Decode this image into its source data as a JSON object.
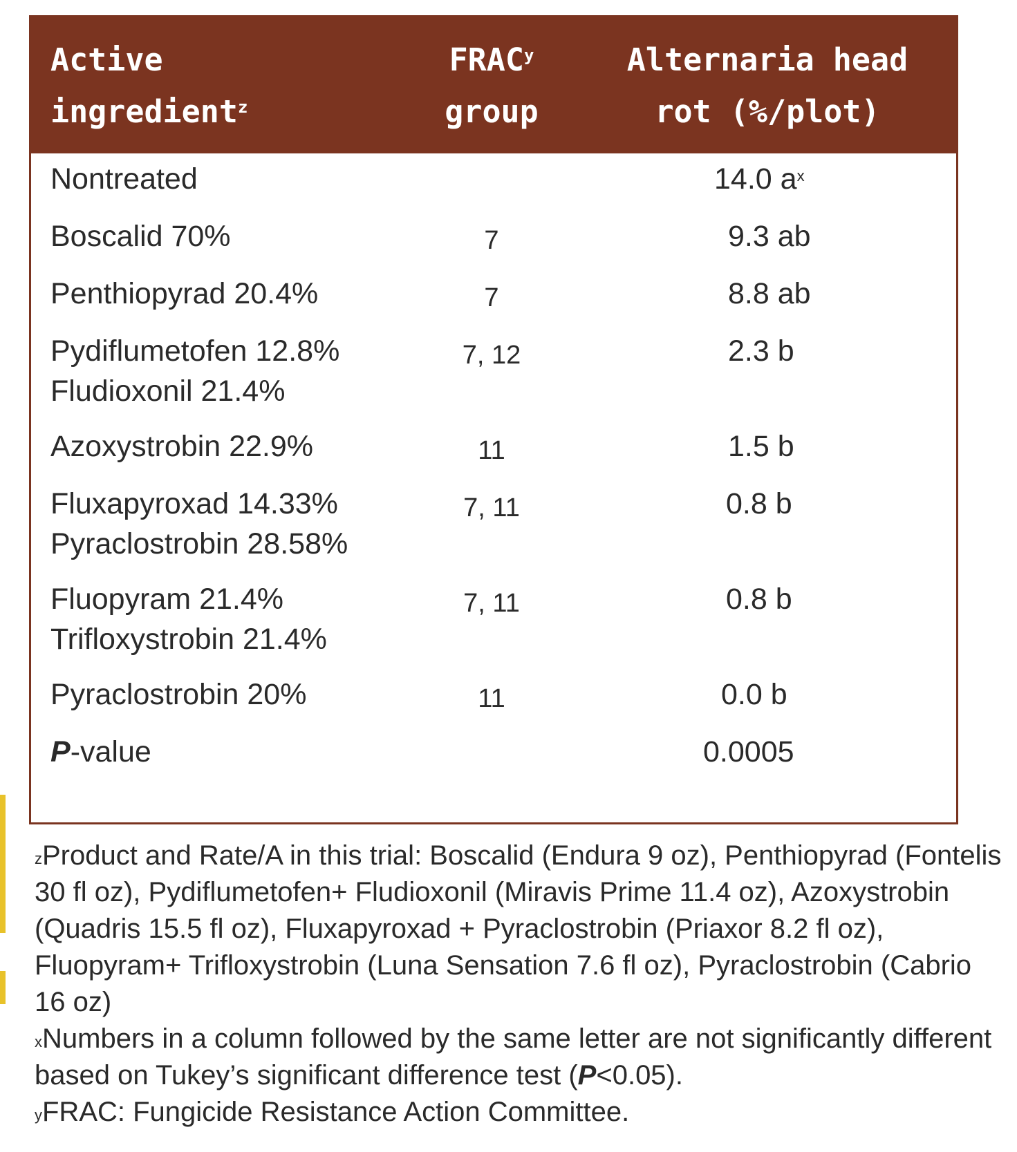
{
  "header": {
    "col1_line1": "Active",
    "col1_line2": "ingredient",
    "col1_sup": "z",
    "col2_line1": "FRAC",
    "col2_sup": "y",
    "col2_line2": "group",
    "col3_line1": "Alternaria head",
    "col3_line2": "rot (%/plot)"
  },
  "rows": [
    {
      "ingredient": [
        "Nontreated"
      ],
      "frac": "",
      "value": "14.0 a",
      "value_sup": "x"
    },
    {
      "ingredient": [
        "Boscalid 70%"
      ],
      "frac": "7",
      "value": "9.3 ab",
      "value_sup": ""
    },
    {
      "ingredient": [
        "Penthiopyrad 20.4%"
      ],
      "frac": "7",
      "value": "8.8 ab",
      "value_sup": ""
    },
    {
      "ingredient": [
        "Pydiflumetofen 12.8%",
        "Fludioxonil 21.4%"
      ],
      "frac": "7, 12",
      "value": "2.3 b",
      "value_sup": ""
    },
    {
      "ingredient": [
        "Azoxystrobin 22.9%"
      ],
      "frac": "11",
      "value": "1.5 b",
      "value_sup": ""
    },
    {
      "ingredient": [
        "Fluxapyroxad 14.33%",
        "Pyraclostrobin 28.58%"
      ],
      "frac": "7, 11",
      "value": "0.8 b",
      "value_sup": ""
    },
    {
      "ingredient": [
        "Fluopyram 21.4%",
        "Trifloxystrobin 21.4%"
      ],
      "frac": "7, 11",
      "value": "0.8 b",
      "value_sup": ""
    },
    {
      "ingredient": [
        "Pyraclostrobin 20%"
      ],
      "frac": "11",
      "value": "0.0 b",
      "value_sup": ""
    }
  ],
  "pvalue_row": {
    "label_italic": "P",
    "label_rest": "-value",
    "value": "0.0005"
  },
  "footnotes": {
    "z_marker": "z",
    "z_text": "Product and Rate/A in this trial: Boscalid (Endura 9 oz), Penthiopyrad (Fontelis 30 fl oz), Pydiflumetofen+ Fludioxonil (Miravis Prime 11.4 oz), Azoxystrobin (Quadris 15.5 fl oz), Fluxapyroxad + Pyraclostrobin (Priaxor 8.2 fl oz), Fluopyram+ Trifloxystrobin (Luna Sensation 7.6 fl oz), Pyraclostrobin (Cabrio 16 oz)",
    "x_marker": "x",
    "x_text_1": "Numbers in a column followed by the same letter are not significantly different based on Tukey’s significant difference test (",
    "x_text_p": "P",
    "x_text_2": "<0.05).",
    "y_marker": "y",
    "y_text": "FRAC: Fungicide Resistance Action Committee."
  },
  "colors": {
    "header_bg": "#7b3420",
    "border": "#7a3420",
    "accent_bar": "#e8c22a"
  }
}
